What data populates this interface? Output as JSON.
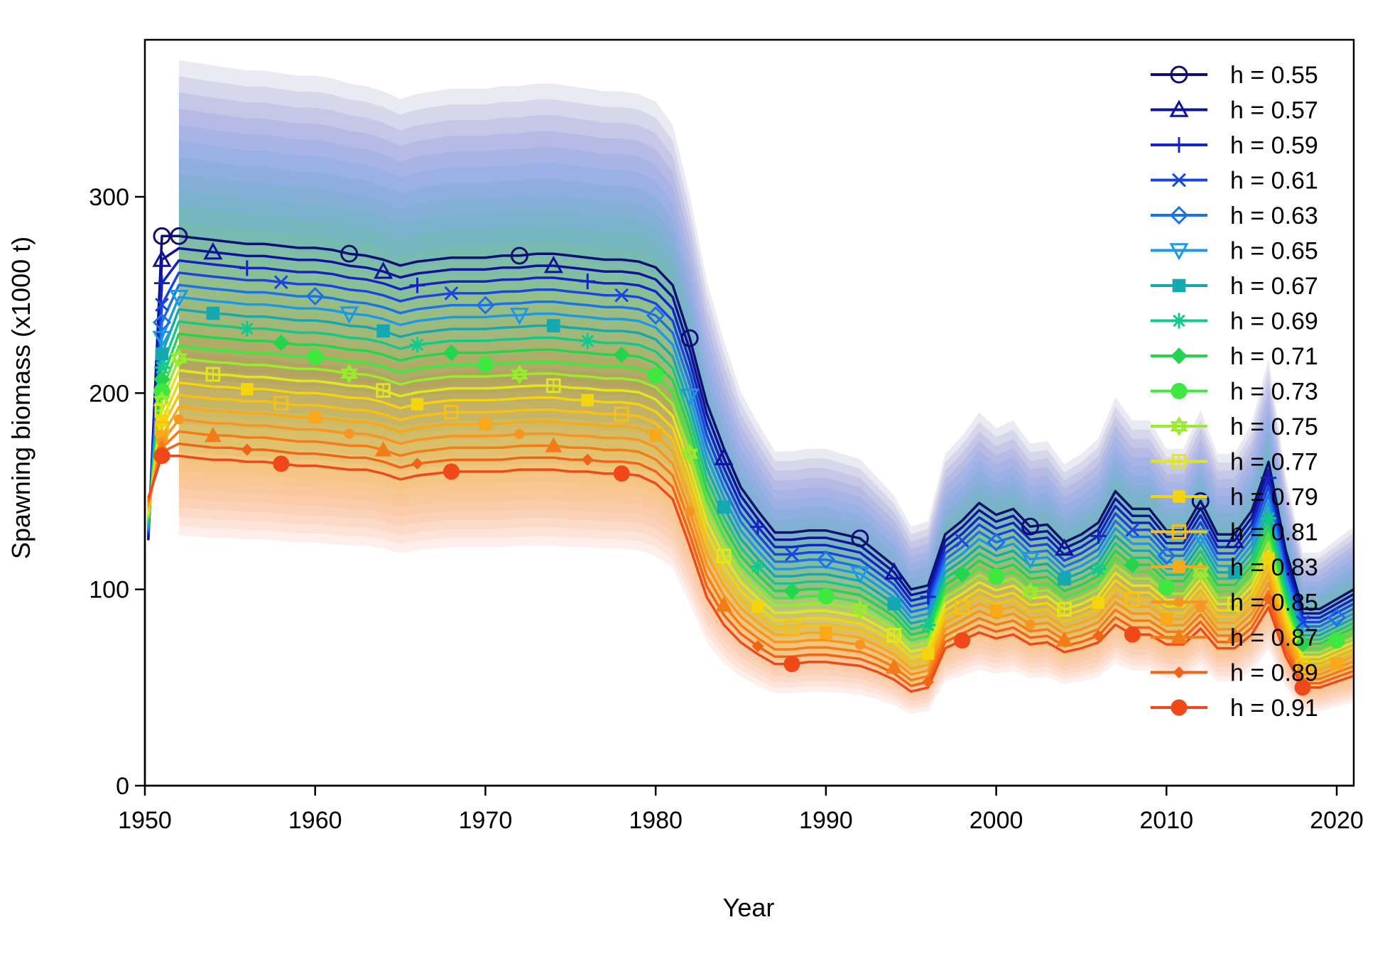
{
  "chart_data": {
    "type": "line",
    "title": "",
    "xlabel": "Year",
    "ylabel": "Spawning biomass (x1000 t)",
    "xlim": [
      1950,
      2021
    ],
    "ylim": [
      0,
      380
    ],
    "x_ticks": [
      "1950",
      "1960",
      "1970",
      "1980",
      "1990",
      "2000",
      "2010",
      "2020"
    ],
    "y_ticks": [
      "0",
      "100",
      "200",
      "300"
    ],
    "legend_position": "top-right",
    "grid": false,
    "shaded_interval": true,
    "series": [
      {
        "name": "h = 0.55",
        "color": "#0f0f6e",
        "marker": "circle-open",
        "unfished": 280
      },
      {
        "name": "h = 0.57",
        "color": "#10129b",
        "marker": "triangle-open",
        "unfished": 268
      },
      {
        "name": "h = 0.59",
        "color": "#1424c4",
        "marker": "plus",
        "unfished": 256
      },
      {
        "name": "h = 0.61",
        "color": "#1a44e0",
        "marker": "cross",
        "unfished": 245
      },
      {
        "name": "h = 0.63",
        "color": "#1c70e8",
        "marker": "diamond-open",
        "unfished": 236
      },
      {
        "name": "h = 0.65",
        "color": "#1c98e4",
        "marker": "triangle-down-open",
        "unfished": 228
      },
      {
        "name": "h = 0.67",
        "color": "#14a8b0",
        "marker": "square-cross",
        "unfished": 220
      },
      {
        "name": "h = 0.69",
        "color": "#14c88c",
        "marker": "asterisk",
        "unfished": 213
      },
      {
        "name": "h = 0.71",
        "color": "#24d44c",
        "marker": "diamond-plus",
        "unfished": 207
      },
      {
        "name": "h = 0.73",
        "color": "#3ee83e",
        "marker": "circle-plus",
        "unfished": 201
      },
      {
        "name": "h = 0.75",
        "color": "#98ec2c",
        "marker": "star",
        "unfished": 196
      },
      {
        "name": "h = 0.77",
        "color": "#e0e81c",
        "marker": "square-plus",
        "unfished": 191
      },
      {
        "name": "h = 0.79",
        "color": "#f4d40c",
        "marker": "square-filled",
        "unfished": 186
      },
      {
        "name": "h = 0.81",
        "color": "#f8c010",
        "marker": "square-open",
        "unfished": 182
      },
      {
        "name": "h = 0.83",
        "color": "#f8a818",
        "marker": "square-filled",
        "unfished": 178
      },
      {
        "name": "h = 0.85",
        "color": "#f89420",
        "marker": "circle-small",
        "unfished": 175
      },
      {
        "name": "h = 0.87",
        "color": "#f47c18",
        "marker": "triangle-filled",
        "unfished": 172
      },
      {
        "name": "h = 0.89",
        "color": "#f06418",
        "marker": "diamond-filled",
        "unfished": 170
      },
      {
        "name": "h = 0.91",
        "color": "#f04818",
        "marker": "circle-filled",
        "unfished": 168
      }
    ],
    "x": [
      1952,
      1953,
      1954,
      1955,
      1956,
      1957,
      1958,
      1959,
      1960,
      1961,
      1962,
      1963,
      1964,
      1965,
      1966,
      1967,
      1968,
      1969,
      1970,
      1971,
      1972,
      1973,
      1974,
      1975,
      1976,
      1977,
      1978,
      1979,
      1980,
      1981,
      1982,
      1983,
      1984,
      1985,
      1986,
      1987,
      1988,
      1989,
      1990,
      1991,
      1992,
      1993,
      1994,
      1995,
      1996,
      1997,
      1998,
      1999,
      2000,
      2001,
      2002,
      2003,
      2004,
      2005,
      2006,
      2007,
      2008,
      2009,
      2010,
      2011,
      2012,
      2013,
      2014,
      2015,
      2016,
      2017,
      2018,
      2019,
      2020,
      2021
    ],
    "y_top_series": [
      280,
      279,
      278,
      277,
      276,
      276,
      275,
      274,
      274,
      273,
      271,
      270,
      268,
      265,
      267,
      268,
      269,
      269,
      269,
      270,
      270,
      271,
      271,
      270,
      269,
      268,
      268,
      267,
      264,
      255,
      228,
      195,
      172,
      152,
      140,
      129,
      129,
      130,
      130,
      128,
      126,
      119,
      112,
      100,
      102,
      128,
      135,
      144,
      138,
      141,
      132,
      133,
      124,
      128,
      134,
      150,
      141,
      141,
      130,
      130,
      145,
      128,
      128,
      140,
      165,
      120,
      90,
      90,
      95,
      100
    ],
    "y_bottom_series": [
      168,
      167,
      166,
      166,
      165,
      165,
      164,
      163,
      163,
      162,
      161,
      161,
      159,
      156,
      158,
      159,
      160,
      160,
      160,
      160,
      161,
      161,
      161,
      160,
      160,
      159,
      159,
      158,
      154,
      146,
      122,
      96,
      82,
      73,
      67,
      62,
      62,
      63,
      63,
      62,
      61,
      58,
      54,
      48,
      50,
      70,
      74,
      78,
      75,
      77,
      72,
      73,
      68,
      70,
      73,
      82,
      77,
      77,
      72,
      72,
      80,
      70,
      70,
      77,
      91,
      66,
      50,
      50,
      53,
      56
    ]
  }
}
